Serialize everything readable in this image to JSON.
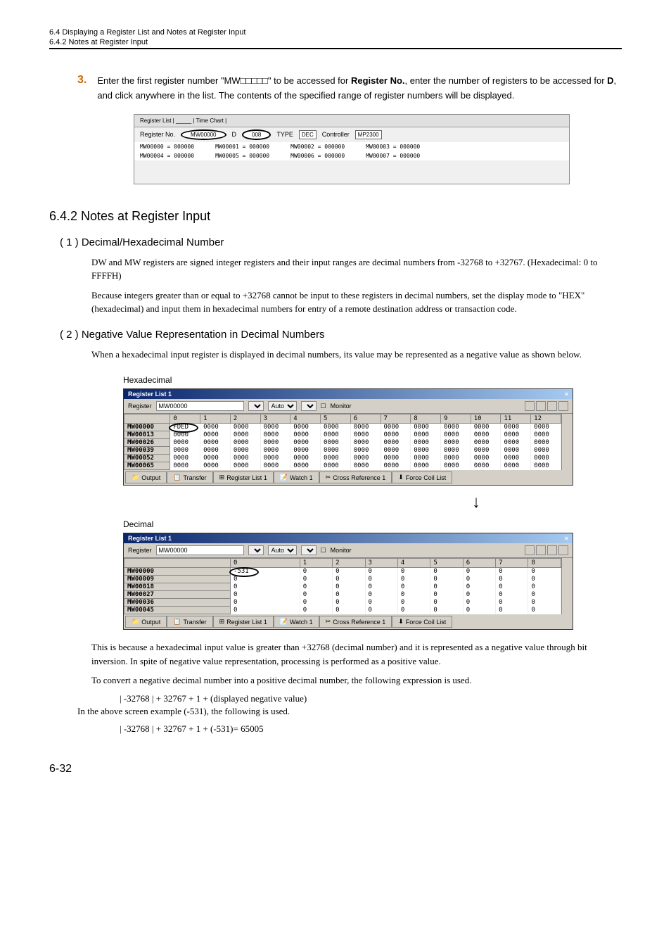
{
  "header": {
    "line1": "6.4  Displaying a Register List and Notes at Register Input",
    "line2": "6.4.2  Notes at Register Input"
  },
  "step": {
    "num": "3.",
    "text_before": "Enter the first register number \"MW□□□□□\" to be accessed for ",
    "bold1": "Register No.",
    "text_mid": ", enter the number of registers to be accessed for ",
    "bold2": "D",
    "text_after": ", and click anywhere in the list. The contents of the specified range of register numbers will be displayed."
  },
  "ss1": {
    "tabs": "Register List | _____ | Time Chart |",
    "reg_label": "Register No.",
    "reg_val": "MW00000",
    "d_label": "D",
    "d_val": "008",
    "type_label": "TYPE",
    "type_val": "DEC",
    "ctrl_label": "Controller",
    "ctrl_val": "MP2300",
    "r1": [
      "MW00000  = 000000",
      "MW00001  = 000000",
      "MW00002  = 000000",
      "MW00003  = 000000"
    ],
    "r2": [
      "MW00004  = 000000",
      "MW00005  = 000000",
      "MW00006  = 000000",
      "MW00007  = 000000"
    ]
  },
  "section": {
    "h2": "6.4.2  Notes at Register Input",
    "sub1_title": "( 1 )  Decimal/Hexadecimal Number",
    "sub1_p1": "DW and MW registers are signed integer registers and their input ranges are decimal numbers from -32768 to +32767. (Hexadecimal: 0 to FFFFH)",
    "sub1_p2": "Because integers greater than or equal to +32768 cannot be input to these registers in decimal numbers, set the display mode to \"HEX\" (hexadecimal) and input them in hexadecimal numbers for entry of a remote destination address or transaction code.",
    "sub2_title": "( 2 )  Negative Value Representation in Decimal Numbers",
    "sub2_p1": "When a hexadecimal input register is displayed in decimal numbers, its value may be represented as a negative value as shown below."
  },
  "hex_label": "Hexadecimal",
  "dec_label": "Decimal",
  "regwin": {
    "title": "Register List 1",
    "reg_label": "Register",
    "reg_val": "MW00000",
    "auto": "Auto",
    "monitor": "Monitor"
  },
  "hex_table": {
    "headers": [
      "",
      "0",
      "1",
      "2",
      "3",
      "4",
      "5",
      "6",
      "7",
      "8",
      "9",
      "10",
      "11",
      "12"
    ],
    "rows": [
      [
        "MW00000",
        "FDED",
        "0000",
        "0000",
        "0000",
        "0000",
        "0000",
        "0000",
        "0000",
        "0000",
        "0000",
        "0000",
        "0000",
        "0000"
      ],
      [
        "MW00013",
        "0000",
        "0000",
        "0000",
        "0000",
        "0000",
        "0000",
        "0000",
        "0000",
        "0000",
        "0000",
        "0000",
        "0000",
        "0000"
      ],
      [
        "MW00026",
        "0000",
        "0000",
        "0000",
        "0000",
        "0000",
        "0000",
        "0000",
        "0000",
        "0000",
        "0000",
        "0000",
        "0000",
        "0000"
      ],
      [
        "MW00039",
        "0000",
        "0000",
        "0000",
        "0000",
        "0000",
        "0000",
        "0000",
        "0000",
        "0000",
        "0000",
        "0000",
        "0000",
        "0000"
      ],
      [
        "MW00052",
        "0000",
        "0000",
        "0000",
        "0000",
        "0000",
        "0000",
        "0000",
        "0000",
        "0000",
        "0000",
        "0000",
        "0000",
        "0000"
      ],
      [
        "MW00065",
        "0000",
        "0000",
        "0000",
        "0000",
        "0000",
        "0000",
        "0000",
        "0000",
        "0000",
        "0000",
        "0000",
        "0000",
        "0000"
      ]
    ]
  },
  "dec_table": {
    "headers": [
      "",
      "0",
      "1",
      "2",
      "3",
      "4",
      "5",
      "6",
      "7",
      "8"
    ],
    "rows": [
      [
        "MW00000",
        "-531",
        "0",
        "0",
        "0",
        "0",
        "0",
        "0",
        "0",
        "0"
      ],
      [
        "MW00009",
        "0",
        "0",
        "0",
        "0",
        "0",
        "0",
        "0",
        "0",
        "0"
      ],
      [
        "MW00018",
        "0",
        "0",
        "0",
        "0",
        "0",
        "0",
        "0",
        "0",
        "0"
      ],
      [
        "MW00027",
        "0",
        "0",
        "0",
        "0",
        "0",
        "0",
        "0",
        "0",
        "0"
      ],
      [
        "MW00036",
        "0",
        "0",
        "0",
        "0",
        "0",
        "0",
        "0",
        "0",
        "0"
      ],
      [
        "MW00045",
        "0",
        "0",
        "0",
        "0",
        "0",
        "0",
        "0",
        "0",
        "0"
      ]
    ]
  },
  "tabs": {
    "output": "Output",
    "transfer": "Transfer",
    "reglist": "Register List 1",
    "watch": "Watch 1",
    "xref": "Cross Reference 1",
    "force": "Force Coil List"
  },
  "footer": {
    "p1": "This is because a hexadecimal input value is greater than +32768 (decimal number) and it is represented as a negative value through bit inversion. In spite of negative value representation, processing is performed as a positive value.",
    "p2": "To convert a negative decimal number into a positive decimal number, the following expression is used.",
    "f1": "| -32768 | + 32767 + 1 + (displayed negative value)",
    "p3": "In the above screen example (-531), the following is used.",
    "f2": "| -32768 | + 32767 + 1 + (-531)= 65005"
  },
  "page_num": "6-32"
}
